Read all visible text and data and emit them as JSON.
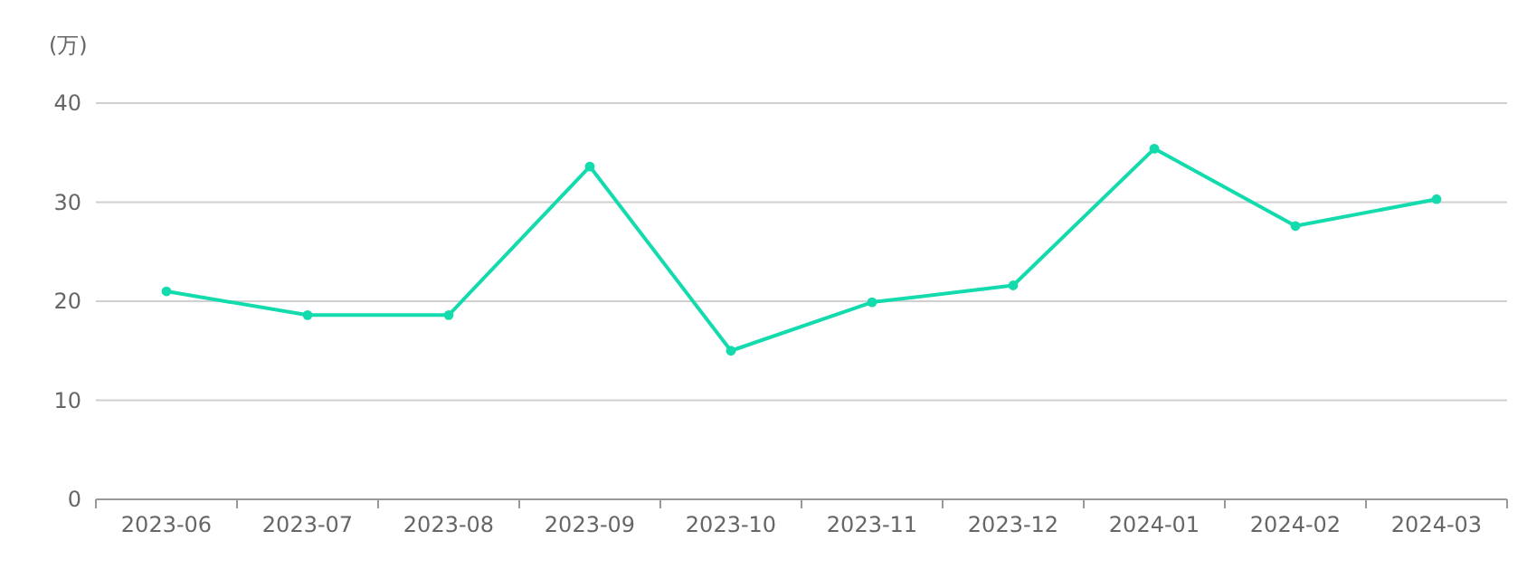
{
  "chart_data": {
    "type": "line",
    "ylabel": "(万)",
    "categories": [
      "2023-06",
      "2023-07",
      "2023-08",
      "2023-09",
      "2023-10",
      "2023-11",
      "2023-12",
      "2024-01",
      "2024-02",
      "2024-03"
    ],
    "series": [
      {
        "color": "#13dbad",
        "values": [
          21.0,
          18.6,
          18.6,
          33.6,
          15.0,
          19.9,
          21.6,
          35.4,
          27.6,
          30.3
        ]
      }
    ],
    "ylim": [
      0,
      40
    ],
    "yticks": [
      0,
      10,
      20,
      30,
      40
    ],
    "grid": "y",
    "marker": "circle"
  }
}
